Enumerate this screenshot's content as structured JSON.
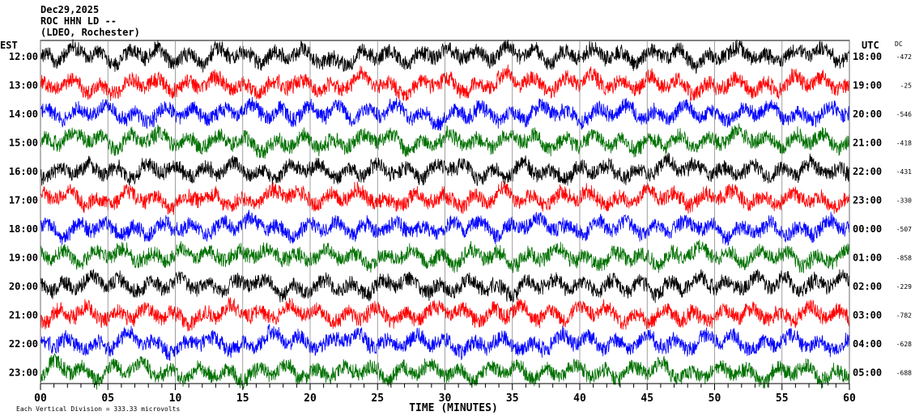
{
  "header": {
    "date": "Dec29,2025",
    "station": "ROC HHN LD --",
    "network": "(LDEO, Rochester)"
  },
  "chart_data": {
    "type": "line",
    "subtype": "helicorder",
    "left_axis_label": "EST",
    "right_axis_label": "UTC",
    "dc_label": "DC",
    "xlabel": "TIME (MINUTES)",
    "xlim": [
      0,
      60
    ],
    "x_ticks": [
      "00",
      "05",
      "10",
      "15",
      "20",
      "25",
      "30",
      "35",
      "40",
      "45",
      "50",
      "55",
      "60"
    ],
    "grid": "vertical every 5 minutes",
    "scale_note": "Each Vertical Division =  333.33 microvolts",
    "colors": [
      "#000000",
      "#ff0000",
      "#0000ff",
      "#007000"
    ],
    "rows": [
      {
        "est": "12:00",
        "utc": "18:00",
        "dc": "-472"
      },
      {
        "est": "13:00",
        "utc": "19:00",
        "dc": "-25"
      },
      {
        "est": "14:00",
        "utc": "20:00",
        "dc": "-546"
      },
      {
        "est": "15:00",
        "utc": "21:00",
        "dc": "-418"
      },
      {
        "est": "16:00",
        "utc": "22:00",
        "dc": "-431"
      },
      {
        "est": "17:00",
        "utc": "23:00",
        "dc": "-330"
      },
      {
        "est": "18:00",
        "utc": "00:00",
        "dc": "-507"
      },
      {
        "est": "19:00",
        "utc": "01:00",
        "dc": "-858"
      },
      {
        "est": "20:00",
        "utc": "02:00",
        "dc": "-229"
      },
      {
        "est": "21:00",
        "utc": "03:00",
        "dc": "-782"
      },
      {
        "est": "22:00",
        "utc": "04:00",
        "dc": "-628"
      },
      {
        "est": "23:00",
        "utc": "05:00",
        "dc": "-688"
      }
    ]
  }
}
